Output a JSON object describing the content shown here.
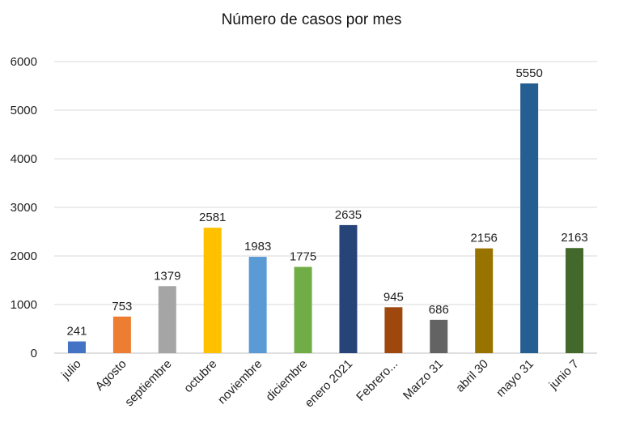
{
  "chart_data": {
    "type": "bar",
    "title": "Número de casos por mes",
    "xlabel": "",
    "ylabel": "",
    "ylim": [
      0,
      6000
    ],
    "yticks": [
      0,
      1000,
      2000,
      3000,
      4000,
      5000,
      6000
    ],
    "grid": true,
    "legend": "none",
    "categories": [
      "julio",
      "Agosto",
      "septiembre",
      "octubre",
      "noviembre",
      "diciembre",
      "enero 2021",
      "Febrero...",
      "Marzo 31",
      "abril 30",
      "mayo 31",
      "junio 7"
    ],
    "values": [
      241,
      753,
      1379,
      2581,
      1983,
      1775,
      2635,
      945,
      686,
      2156,
      5550,
      2163
    ],
    "colors": [
      "#4472c4",
      "#ed7d31",
      "#a5a5a5",
      "#ffc000",
      "#5b9bd5",
      "#70ad47",
      "#264478",
      "#9e480e",
      "#636363",
      "#997300",
      "#255e91",
      "#43682b"
    ]
  }
}
